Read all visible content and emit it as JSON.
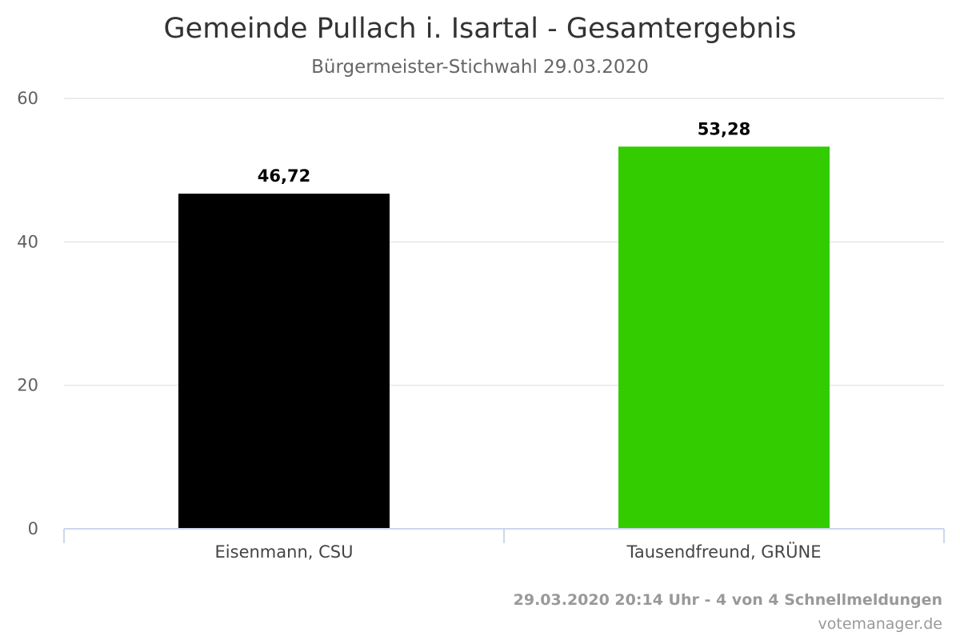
{
  "chart_data": {
    "type": "bar",
    "title": "Gemeinde Pullach i. Isartal - Gesamtergebnis",
    "subtitle": "Bürgermeister-Stichwahl 29.03.2020",
    "categories": [
      "Eisenmann, CSU",
      "Tausendfreund, GRÜNE"
    ],
    "values": [
      46.72,
      53.28
    ],
    "data_labels": [
      "46,72",
      "53,28"
    ],
    "bar_colors": [
      "#000000",
      "#33cc00"
    ],
    "ylim": [
      0,
      60
    ],
    "yticks": [
      0,
      20,
      40,
      60
    ],
    "xlabel": "",
    "ylabel": "",
    "grid": true,
    "legend": "none"
  },
  "credits": {
    "timestamp": "29.03.2020 20:14 Uhr - 4 von 4 Schnellmeldungen",
    "source": "votemanager.de"
  }
}
